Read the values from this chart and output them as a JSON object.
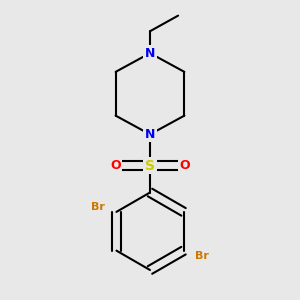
{
  "background_color": "#e8e8e8",
  "bond_color": "#000000",
  "N_color": "#0000ee",
  "S_color": "#cccc00",
  "O_color": "#ff0000",
  "Br_color": "#cc7700",
  "line_width": 1.5,
  "figsize": [
    3.0,
    3.0
  ],
  "dpi": 100,
  "xlim": [
    -1.6,
    1.6
  ],
  "ylim": [
    -2.0,
    2.8
  ]
}
